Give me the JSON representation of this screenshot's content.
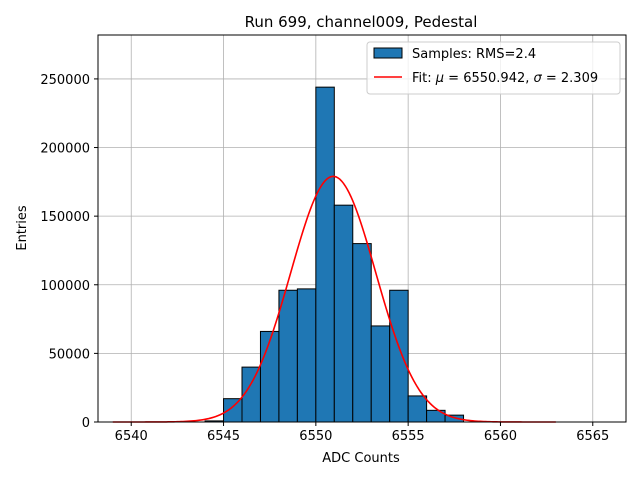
{
  "chart_data": {
    "type": "bar",
    "title": "Run 699, channel009, Pedestal",
    "xlabel": "ADC Counts",
    "ylabel": "Entries",
    "xlim": [
      6538.2,
      6566.8
    ],
    "ylim": [
      0,
      282000
    ],
    "grid": true,
    "legend_position": "top-right",
    "colors": {
      "bars": "#1f77b4",
      "bar_edge": "#000000",
      "fit": "#ff0000",
      "grid": "#b0b0b0"
    },
    "x_ticks": [
      6540,
      6545,
      6550,
      6555,
      6560,
      6565
    ],
    "y_ticks": [
      0,
      50000,
      100000,
      150000,
      200000,
      250000
    ],
    "bin_width": 1,
    "histogram": {
      "name": "Samples: RMS=2.4",
      "bin_starts": [
        6544,
        6545,
        6546,
        6547,
        6548,
        6549,
        6550,
        6551,
        6552,
        6553,
        6554,
        6555,
        6556,
        6557
      ],
      "counts": [
        800,
        17000,
        40000,
        66000,
        96000,
        97000,
        244000,
        158000,
        130000,
        70000,
        96000,
        19000,
        8500,
        5000
      ]
    },
    "fit": {
      "mu": 6550.942,
      "sigma": 2.309,
      "amplitude": 179000,
      "x_range": [
        6539,
        6563
      ]
    },
    "legend": {
      "entries": [
        {
          "kind": "patch",
          "text": "Samples: RMS=2.4"
        },
        {
          "kind": "line",
          "text_prefix": "Fit: ",
          "mu_symbol": "μ",
          "mu_text": " = 6550.942, ",
          "sigma_symbol": "σ",
          "sigma_text": " = 2.309"
        }
      ]
    }
  }
}
